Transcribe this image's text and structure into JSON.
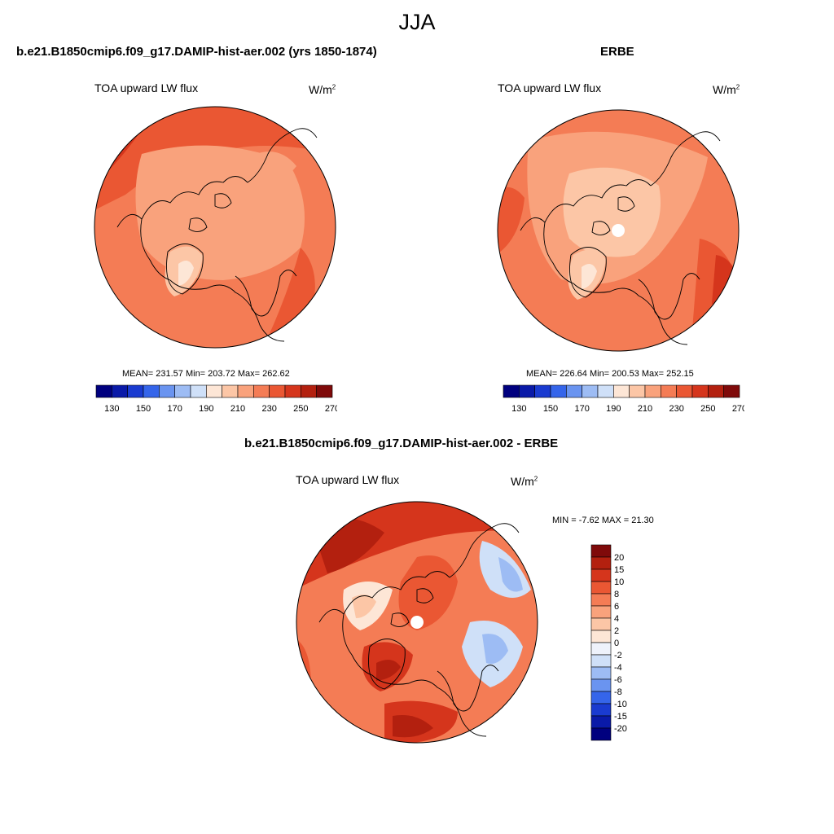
{
  "figure": {
    "title": "JJA"
  },
  "panels": [
    {
      "title": "b.e21.B1850cmip6.f09_g17.DAMIP-hist-aer.002 (yrs 1850-1874)",
      "variable": "TOA upward LW flux",
      "units_base": "W/m",
      "units_exp": "2",
      "stats": "MEAN= 231.57  Min= 203.72  Max= 262.62",
      "colorbar": {
        "ticks": [
          "130",
          "150",
          "170",
          "190",
          "210",
          "230",
          "250",
          "270"
        ],
        "colors": [
          "#00007f",
          "#0a1aa8",
          "#1a3bd0",
          "#3565ea",
          "#6a94f0",
          "#9dbcf4",
          "#cfe0f8",
          "#fde6d6",
          "#fcc6a6",
          "#f9a27c",
          "#f47c55",
          "#ea5733",
          "#d5351c",
          "#b3200f",
          "#7f0a0a"
        ]
      }
    },
    {
      "title": "ERBE",
      "variable": "TOA upward LW flux",
      "units_base": "W/m",
      "units_exp": "2",
      "stats": "MEAN= 226.64  Min= 200.53  Max= 252.15",
      "colorbar": {
        "ticks": [
          "130",
          "150",
          "170",
          "190",
          "210",
          "230",
          "250",
          "270"
        ],
        "colors": [
          "#00007f",
          "#0a1aa8",
          "#1a3bd0",
          "#3565ea",
          "#6a94f0",
          "#9dbcf4",
          "#cfe0f8",
          "#fde6d6",
          "#fcc6a6",
          "#f9a27c",
          "#f47c55",
          "#ea5733",
          "#d5351c",
          "#b3200f",
          "#7f0a0a"
        ]
      }
    },
    {
      "title": "b.e21.B1850cmip6.f09_g17.DAMIP-hist-aer.002 - ERBE",
      "variable": "TOA upward LW flux",
      "units_base": "W/m",
      "units_exp": "2",
      "stats": "MIN =  -7.62 MAX =  21.30",
      "colorbar": {
        "ticks": [
          "20",
          "15",
          "10",
          "8",
          "6",
          "4",
          "2",
          "0",
          "-2",
          "-4",
          "-6",
          "-8",
          "-10",
          "-15",
          "-20"
        ],
        "colors": [
          "#7f0a0a",
          "#b3200f",
          "#d5351c",
          "#ea5733",
          "#f47c55",
          "#f9a27c",
          "#fcc6a6",
          "#fde6d6",
          "#eef2fb",
          "#cfe0f8",
          "#9dbcf4",
          "#6a94f0",
          "#3565ea",
          "#1a3bd0",
          "#0a1aa8",
          "#00007f"
        ]
      }
    }
  ]
}
